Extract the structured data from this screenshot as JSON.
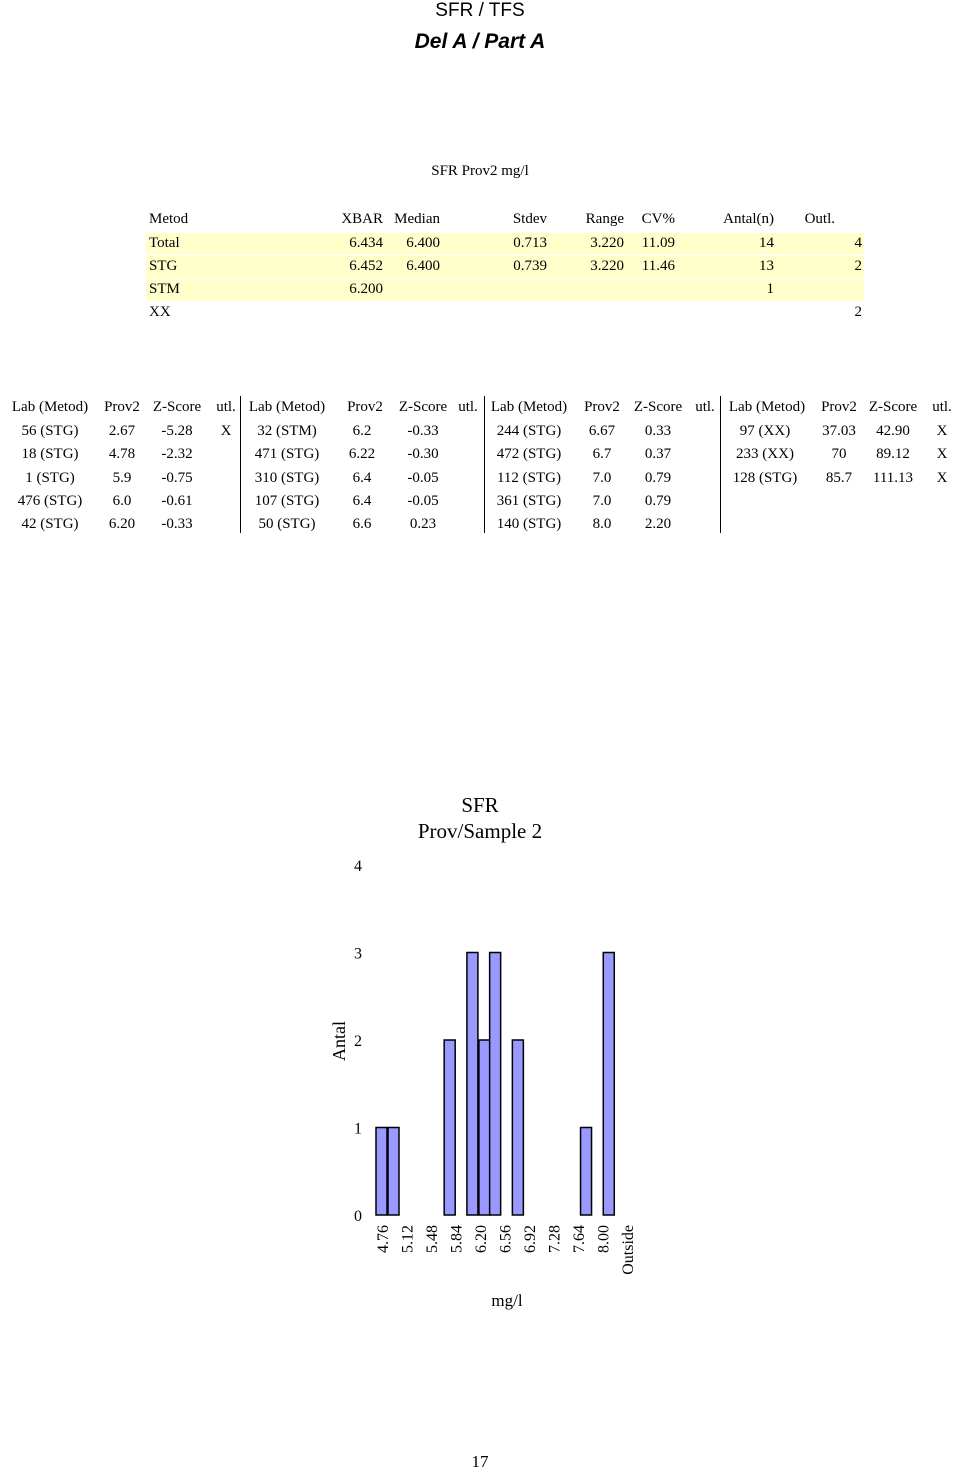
{
  "header": {
    "title": "SFR / TFS",
    "subtitle": "Del A / Part A"
  },
  "summary": {
    "caption": "SFR Prov2 mg/l",
    "headers": [
      "Metod",
      "XBAR",
      "Median",
      "Stdev",
      "Range",
      "CV%",
      "Antal(n)",
      "Outl."
    ],
    "rows": [
      [
        "Total",
        "6.434",
        "6.400",
        "0.713",
        "3.220",
        "11.09",
        "14",
        "4"
      ],
      [
        "STG",
        "6.452",
        "6.400",
        "0.739",
        "3.220",
        "11.46",
        "13",
        "2"
      ],
      [
        "STM",
        "6.200",
        "",
        "",
        "",
        "",
        "1",
        ""
      ],
      [
        "XX",
        "",
        "",
        "",
        "",
        "",
        "",
        "2"
      ]
    ]
  },
  "results": {
    "headers": [
      "Lab (Metod)",
      "Prov2",
      "Z-Score",
      "utl."
    ],
    "groups": [
      [
        [
          "56 (STG)",
          "2.67",
          "-5.28",
          "X"
        ],
        [
          "18 (STG)",
          "4.78",
          "-2.32",
          ""
        ],
        [
          "1 (STG)",
          "5.9",
          "-0.75",
          ""
        ],
        [
          "476 (STG)",
          "6.0",
          "-0.61",
          ""
        ],
        [
          "42 (STG)",
          "6.20",
          "-0.33",
          ""
        ]
      ],
      [
        [
          "32 (STM)",
          "6.2",
          "-0.33",
          ""
        ],
        [
          "471 (STG)",
          "6.22",
          "-0.30",
          ""
        ],
        [
          "310 (STG)",
          "6.4",
          "-0.05",
          ""
        ],
        [
          "107 (STG)",
          "6.4",
          "-0.05",
          ""
        ],
        [
          "50 (STG)",
          "6.6",
          "0.23",
          ""
        ]
      ],
      [
        [
          "244 (STG)",
          "6.67",
          "0.33",
          ""
        ],
        [
          "472 (STG)",
          "6.7",
          "0.37",
          ""
        ],
        [
          "112 (STG)",
          "7.0",
          "0.79",
          ""
        ],
        [
          "361 (STG)",
          "7.0",
          "0.79",
          ""
        ],
        [
          "140 (STG)",
          "8.0",
          "2.20",
          ""
        ]
      ],
      [
        [
          "97 (XX)",
          "37.03",
          "42.90",
          "X"
        ],
        [
          "233 (XX)",
          "70",
          "89.12",
          "X"
        ],
        [
          "128 (STG)",
          "85.7",
          "111.13",
          "X"
        ]
      ]
    ]
  },
  "chart_data": {
    "type": "bar",
    "title": "SFR\nProv/Sample 2",
    "title_lines": [
      "SFR",
      "Prov/Sample 2"
    ],
    "xlabel": "mg/l",
    "ylabel": "Antal",
    "ylim": [
      0,
      4
    ],
    "yticks": [
      "0",
      "1",
      "2",
      "3",
      "4"
    ],
    "grid": false,
    "bar_color": "#9999ff",
    "categories": [
      "4.76",
      "5.12",
      "5.48",
      "5.84",
      "6.20",
      "6.56",
      "6.92",
      "7.28",
      "7.64",
      "8.00",
      "Outside"
    ],
    "values": [
      1,
      0,
      0,
      2,
      3,
      2,
      2,
      0,
      0,
      1,
      3
    ],
    "bars": [
      {
        "x_start": 4.4,
        "x_end": 4.76,
        "value": 1
      },
      {
        "x_start": 4.4,
        "x_end": 4.76,
        "value": 1
      },
      {
        "x_start": 5.48,
        "x_end": 5.84,
        "value": 2
      },
      {
        "x_start": 5.84,
        "x_end": 6.2,
        "value": 3
      },
      {
        "x_start": 5.84,
        "x_end": 6.2,
        "value": 2
      },
      {
        "x_start": 6.2,
        "x_end": 6.56,
        "value": 3
      },
      {
        "x_start": 6.56,
        "x_end": 6.92,
        "value": 2
      },
      {
        "x_start": 7.64,
        "x_end": 8.0,
        "value": 1
      },
      {
        "x_start": 8.0,
        "x_end": 8.36,
        "value": 3
      }
    ]
  },
  "page_number": "17"
}
